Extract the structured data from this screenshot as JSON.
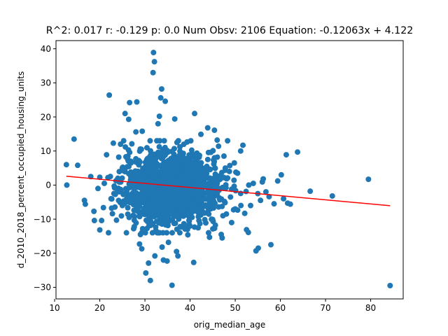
{
  "chart_data": {
    "type": "scatter",
    "title": "R^2: 0.017 r: -0.129 p: 0.0 Num Obsv: 2106 Equation: -0.12063x + 4.122",
    "xlabel": "orig_median_age",
    "ylabel": "d_2010_2018_percent_occupied_housing_units",
    "xlim": [
      10.3,
      87.2
    ],
    "ylim": [
      -33.4,
      42.4
    ],
    "xticks": [
      10,
      20,
      30,
      40,
      50,
      60,
      70,
      80
    ],
    "yticks": [
      -30,
      -20,
      -10,
      0,
      10,
      20,
      30,
      40
    ],
    "grid": false,
    "legend": "none",
    "point_color": "#1f77b4",
    "line_color": "#ff0000",
    "fit": {
      "slope": -0.12063,
      "intercept": 4.122,
      "x_range": [
        12.6,
        84.3
      ]
    },
    "core_cloud": {
      "count": 1700,
      "center": [
        36,
        -1
      ],
      "spread": [
        5.2,
        5.0
      ],
      "seed": 7
    },
    "points": [
      [
        12.6,
        6.0
      ],
      [
        12.7,
        0.0
      ],
      [
        14.3,
        13.5
      ],
      [
        15.1,
        5.8
      ],
      [
        16.6,
        -4.5
      ],
      [
        16.8,
        -5.6
      ],
      [
        18.0,
        2.5
      ],
      [
        18.7,
        -7.7
      ],
      [
        18.8,
        -10.4
      ],
      [
        20.4,
        -10.4
      ],
      [
        19.6,
        -1.0
      ],
      [
        20.0,
        2.3
      ],
      [
        21.5,
        8.9
      ],
      [
        21.8,
        2.2
      ],
      [
        22.1,
        26.4
      ],
      [
        22.8,
        -8.4
      ],
      [
        23.0,
        12.3
      ],
      [
        23.7,
        -10.3
      ],
      [
        24.2,
        8.2
      ],
      [
        24.6,
        12.0
      ],
      [
        25.0,
        -6.0
      ],
      [
        25.6,
        21.0
      ],
      [
        25.8,
        8.3
      ],
      [
        25.9,
        -14.0
      ],
      [
        26.4,
        19.3
      ],
      [
        26.6,
        24.2
      ],
      [
        26.9,
        6.5
      ],
      [
        27.1,
        12.1
      ],
      [
        27.5,
        -12.8
      ],
      [
        28.0,
        15.6
      ],
      [
        28.2,
        24.4
      ],
      [
        28.8,
        -17.3
      ],
      [
        29.0,
        -14.5
      ],
      [
        29.3,
        -18.7
      ],
      [
        29.4,
        15.8
      ],
      [
        30.2,
        -25.8
      ],
      [
        30.8,
        -22.9
      ],
      [
        31.2,
        -28.0
      ],
      [
        31.8,
        33.0
      ],
      [
        31.9,
        38.9
      ],
      [
        32.1,
        36.2
      ],
      [
        32.2,
        -20.8
      ],
      [
        32.9,
        18.0
      ],
      [
        33.2,
        20.2
      ],
      [
        33.5,
        25.6
      ],
      [
        33.7,
        28.2
      ],
      [
        33.8,
        -18.2
      ],
      [
        34.1,
        -22.0
      ],
      [
        34.5,
        24.6
      ],
      [
        34.9,
        -22.3
      ],
      [
        35.2,
        -16.8
      ],
      [
        36.0,
        -29.4
      ],
      [
        36.6,
        19.4
      ],
      [
        37.0,
        -19.5
      ],
      [
        37.3,
        -20.8
      ],
      [
        38.9,
        -12.9
      ],
      [
        39.5,
        -14.6
      ],
      [
        40.8,
        -22.7
      ],
      [
        41.0,
        21.0
      ],
      [
        42.4,
        14.9
      ],
      [
        43.9,
        16.8
      ],
      [
        44.3,
        -15.3
      ],
      [
        44.6,
        9.6
      ],
      [
        45.4,
        16.1
      ],
      [
        46.0,
        13.2
      ],
      [
        46.3,
        11.4
      ],
      [
        46.9,
        -14.5
      ],
      [
        47.1,
        -15.5
      ],
      [
        47.5,
        8.5
      ],
      [
        48.3,
        13.0
      ],
      [
        48.7,
        4.0
      ],
      [
        49.2,
        -11.0
      ],
      [
        49.8,
        6.5
      ],
      [
        50.5,
        3.5
      ],
      [
        51.2,
        10.0
      ],
      [
        51.7,
        11.7
      ],
      [
        52.1,
        -8.3
      ],
      [
        52.5,
        -13.1
      ],
      [
        52.9,
        -13.9
      ],
      [
        53.4,
        -6.0
      ],
      [
        54.0,
        0.5
      ],
      [
        54.6,
        -19.3
      ],
      [
        55.1,
        -18.5
      ],
      [
        55.6,
        -4.5
      ],
      [
        56.2,
        1.8
      ],
      [
        56.8,
        -2.0
      ],
      [
        57.5,
        -3.4
      ],
      [
        57.9,
        -17.5
      ],
      [
        58.6,
        -5.5
      ],
      [
        59.4,
        1.2
      ],
      [
        60.2,
        3.0
      ],
      [
        60.7,
        -4.0
      ],
      [
        61.3,
        8.9
      ],
      [
        61.6,
        -5.3
      ],
      [
        62.2,
        -5.6
      ],
      [
        63.8,
        9.7
      ],
      [
        66.6,
        -1.8
      ],
      [
        71.5,
        -3.2
      ],
      [
        79.5,
        1.7
      ],
      [
        84.3,
        -29.5
      ],
      [
        53.0,
        0.0
      ],
      [
        55.0,
        -2.5
      ],
      [
        50.0,
        -7.0
      ],
      [
        47.8,
        5.0
      ],
      [
        24.0,
        2.0
      ],
      [
        22.5,
        -4.0
      ],
      [
        21.0,
        0.5
      ],
      [
        26.5,
        -9.5
      ]
    ]
  }
}
